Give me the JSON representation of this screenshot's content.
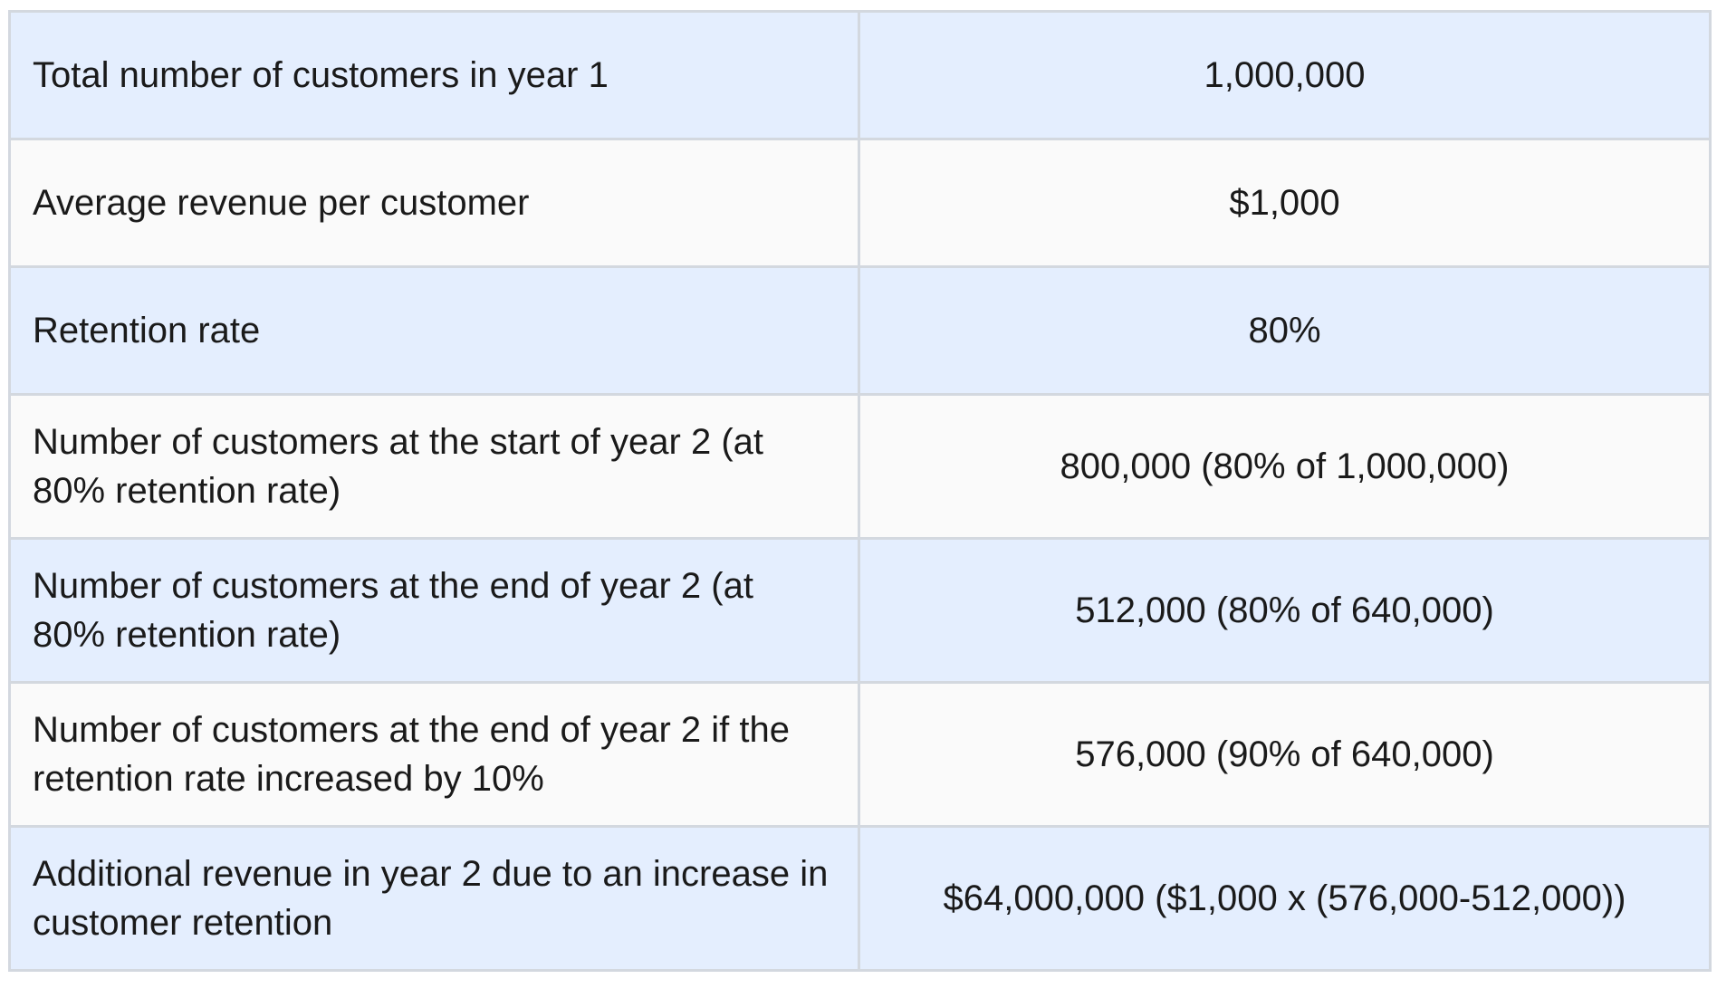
{
  "table": {
    "rows": [
      {
        "label": "Total number of customers in year 1",
        "value": "1,000,000"
      },
      {
        "label": "Average revenue per customer",
        "value": "$1,000"
      },
      {
        "label": "Retention rate",
        "value": "80%"
      },
      {
        "label": "Number of customers at the start of year 2 (at 80% retention rate)",
        "value": "800,000 (80% of 1,000,000)"
      },
      {
        "label": "Number of customers at the end of year 2 (at 80% retention rate)",
        "value": "512,000 (80% of 640,000)"
      },
      {
        "label": "Number of customers at the end of year 2 if the retention rate increased by 10%",
        "value": "576,000 (90% of 640,000)"
      },
      {
        "label": "Additional revenue in year 2 due to an increase in customer retention",
        "value": "$64,000,000 ($1,000 x (576,000-512,000))"
      }
    ]
  },
  "colors": {
    "row_tint": "#e4eefe",
    "row_plain": "#fafafa",
    "border": "#d3d8df",
    "text": "#1a1a1a"
  }
}
